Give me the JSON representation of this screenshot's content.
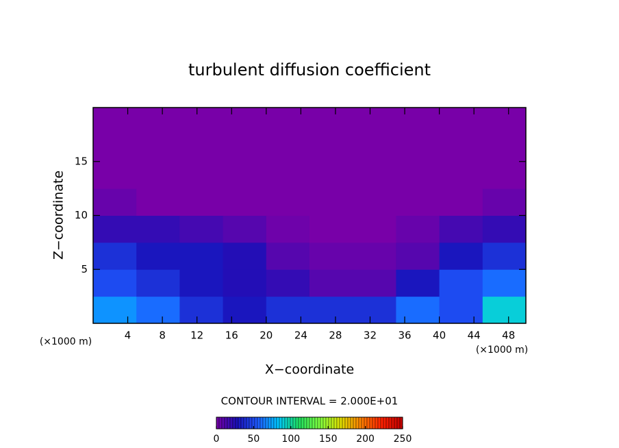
{
  "chart_data": {
    "type": "heatmap",
    "title": "turbulent diffusion coefficient",
    "x_label": "X−coordinate",
    "y_label": "Z−coordinate",
    "x_unit": "(×1000 m)",
    "y_unit": "(×1000 m)",
    "annotation": "CONTOUR INTERVAL = 2.000E+01",
    "xlim": [
      0,
      50
    ],
    "ylim": [
      0,
      20
    ],
    "xticks": [
      4,
      8,
      12,
      16,
      20,
      24,
      28,
      32,
      36,
      40,
      44,
      48
    ],
    "yticks": [
      5,
      10,
      15
    ],
    "x": [
      2.5,
      7.5,
      12.5,
      17.5,
      22.5,
      27.5,
      32.5,
      37.5,
      42.5,
      47.5
    ],
    "y": [
      1.25,
      3.75,
      6.25,
      8.75,
      11.25,
      13.75,
      16.25,
      18.75
    ],
    "z": [
      [
        70,
        60,
        40,
        30,
        40,
        40,
        40,
        60,
        50,
        90
      ],
      [
        50,
        40,
        30,
        25,
        20,
        10,
        10,
        30,
        50,
        60
      ],
      [
        40,
        30,
        30,
        25,
        10,
        5,
        5,
        10,
        30,
        40
      ],
      [
        20,
        20,
        15,
        10,
        3,
        0,
        0,
        5,
        15,
        20
      ],
      [
        5,
        0,
        0,
        0,
        0,
        0,
        0,
        0,
        0,
        5
      ],
      [
        0,
        0,
        0,
        0,
        0,
        0,
        0,
        0,
        0,
        0
      ],
      [
        0,
        0,
        0,
        0,
        0,
        0,
        0,
        0,
        0,
        0
      ],
      [
        0,
        0,
        0,
        0,
        0,
        0,
        0,
        0,
        0,
        0
      ]
    ],
    "zlim": [
      0,
      250
    ],
    "zticks": [
      0,
      50,
      100,
      150,
      200,
      250
    ],
    "colormap": [
      "#7800a8",
      "#1a10b8",
      "#1e5aff",
      "#00c8ff",
      "#20e060",
      "#80ff40",
      "#e0e000",
      "#ff8000",
      "#ff2000",
      "#c00000"
    ]
  }
}
